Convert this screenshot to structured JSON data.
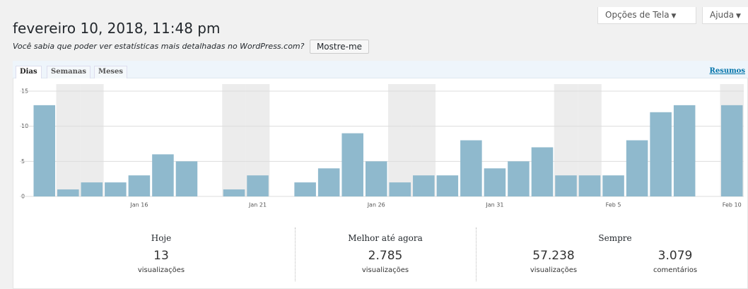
{
  "header": {
    "title": "fevereiro 10, 2018, 11:48 pm",
    "screen_options": "Opções de Tela",
    "help": "Ajuda"
  },
  "notice": {
    "text": "Você sabia que poder ver estatísticas mais detalhadas no WordPress.com?",
    "button": "Mostre-me"
  },
  "tabs": [
    "Dias",
    "Semanas",
    "Meses"
  ],
  "summary_link": "Resumos",
  "chart_data": {
    "type": "bar",
    "categories": [
      null,
      null,
      null,
      null,
      "Jan 16",
      null,
      null,
      null,
      null,
      "Jan 21",
      null,
      null,
      null,
      null,
      "Jan 26",
      null,
      null,
      null,
      null,
      "Jan 31",
      null,
      null,
      null,
      null,
      "Feb 5",
      null,
      null,
      null,
      null,
      "Feb 10"
    ],
    "values": [
      13,
      1,
      2,
      2,
      3,
      6,
      5,
      0,
      1,
      3,
      0,
      2,
      4,
      9,
      5,
      2,
      3,
      3,
      8,
      4,
      5,
      7,
      3,
      3,
      3,
      8,
      12,
      13,
      0,
      13
    ],
    "color": "#8fb9cd",
    "ylim": [
      0,
      15
    ],
    "yticks": [
      0,
      5,
      10,
      15
    ],
    "grid": true
  },
  "stats": {
    "today": {
      "heading": "Hoje",
      "value": "13",
      "unit": "visualizações"
    },
    "best": {
      "heading": "Melhor até agora",
      "value": "2.785",
      "unit": "visualizações"
    },
    "all_time": {
      "heading": "Sempre",
      "views": "57.238",
      "views_unit": "visualizações",
      "comments": "3.079",
      "comments_unit": "comentários"
    }
  }
}
